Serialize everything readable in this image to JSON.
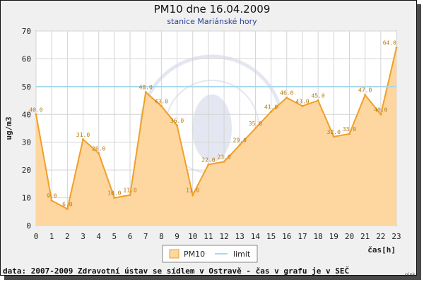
{
  "chart_data": {
    "type": "area",
    "title": "PM10 dne 16.04.2009",
    "subtitle": "stanice Mariánské hory",
    "xlabel": "čas[h]",
    "ylabel": "ug/m3",
    "x": [
      0,
      1,
      2,
      3,
      4,
      5,
      6,
      7,
      8,
      9,
      10,
      11,
      12,
      13,
      14,
      15,
      16,
      17,
      18,
      19,
      20,
      21,
      22,
      23
    ],
    "series": [
      {
        "name": "PM10",
        "values": [
          40,
          9,
          6,
          31,
          26,
          10,
          11,
          48,
          43,
          36,
          11,
          22,
          23,
          29,
          35,
          41,
          46,
          43,
          45,
          32,
          33,
          47,
          40,
          64
        ],
        "labels": [
          "40.0",
          "9.0",
          "6.0",
          "31.0",
          "26.0",
          "10.0",
          "11.0",
          "48.0",
          "43.0",
          "36.0",
          "11.0",
          "22.0",
          "23.0",
          "29.0",
          "35.0",
          "41.0",
          "46.0",
          "43.0",
          "45.0",
          "32.0",
          "33.0",
          "47.0",
          "40.0",
          "64.0"
        ],
        "fill_color": "#fdd6a0",
        "line_color": "#f0a028"
      }
    ],
    "limit": {
      "name": "limit",
      "value": 50,
      "color": "#a8d8ec"
    },
    "ylim": [
      0,
      70
    ],
    "yticks": [
      "0",
      "10",
      "20",
      "30",
      "40",
      "50",
      "60",
      "70"
    ],
    "xticks": [
      "0",
      "1",
      "2",
      "3",
      "4",
      "5",
      "6",
      "7",
      "8",
      "9",
      "10",
      "11",
      "12",
      "13",
      "14",
      "15",
      "16",
      "17",
      "18",
      "19",
      "20",
      "21",
      "22",
      "23"
    ],
    "grid": true,
    "legend_position": "bottom-center"
  },
  "footer": "data: 2007-2009 Zdravotní ústav se sídlem v Ostravě - čas v grafu je v SEČ",
  "tag": "pink"
}
